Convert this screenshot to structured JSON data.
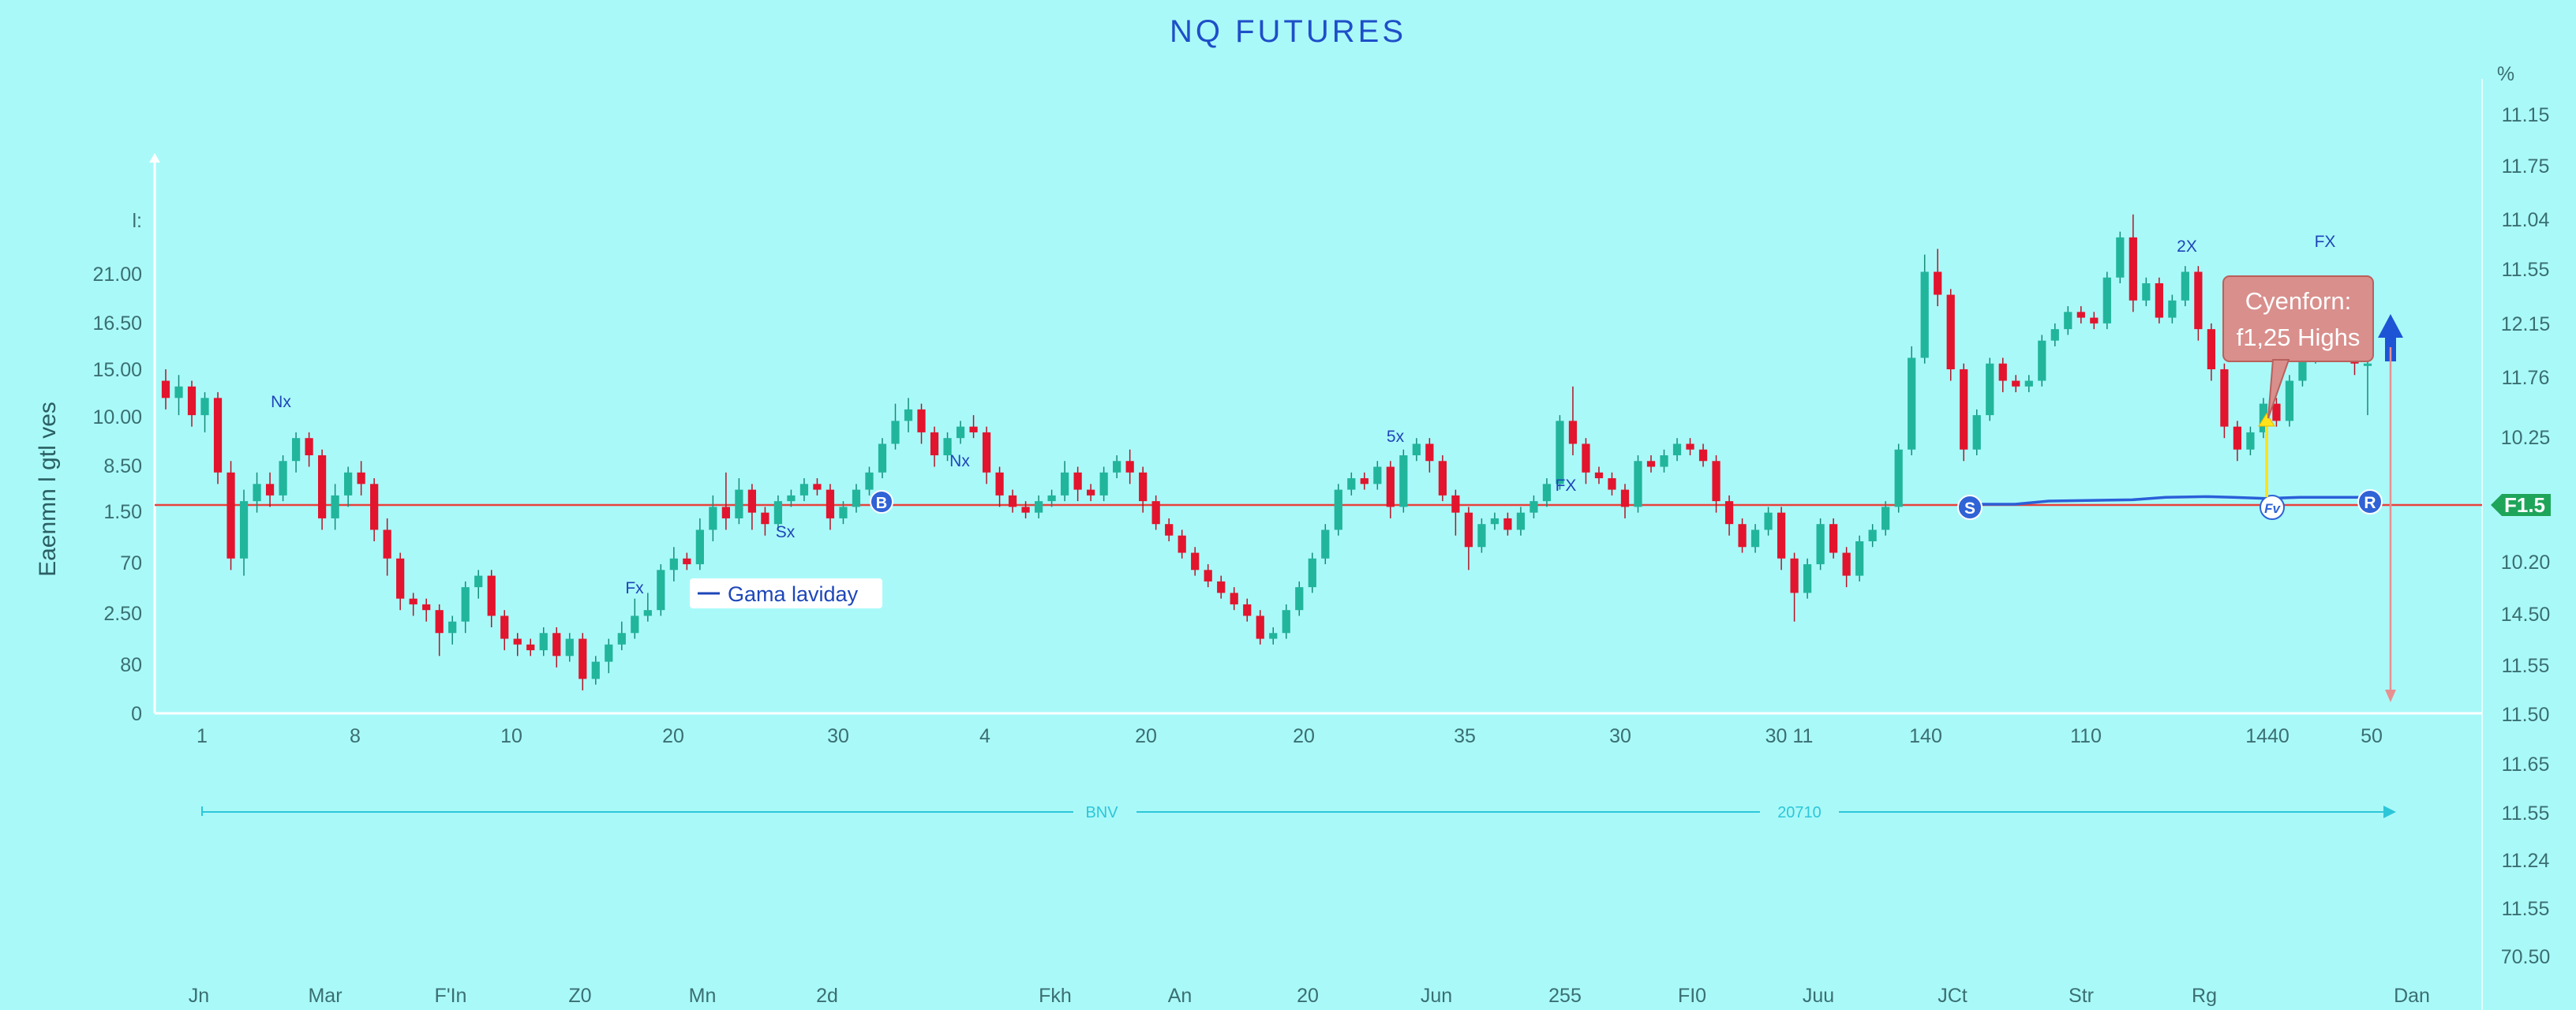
{
  "chart_data": {
    "type": "candlestick",
    "title": "NQ FUTURES",
    "ylabel": "Eaenmn l gtl ves",
    "right_axis_unit": "%",
    "left_ticks": [
      "0",
      "80",
      "2.50",
      "70",
      "1.50",
      "8.50",
      "10.00",
      "15.00",
      "16.50",
      "21.00",
      "l:"
    ],
    "right_ticks": [
      "11.15",
      "11.75",
      "11.04",
      "11.55",
      "12.15",
      "11.76",
      "10.25",
      "1F1.5",
      "10.20",
      "14.50",
      "11.55",
      "11.50",
      "11.65",
      "11.55",
      "11.24",
      "11.55",
      "70.50"
    ],
    "price_badge": "F1.5",
    "x_ticks": [
      "1",
      "8",
      "10",
      "20",
      "30",
      "4",
      "20",
      "20",
      "35",
      "30",
      "30 11",
      "140",
      "110",
      "1440",
      "50"
    ],
    "month_ticks": [
      "Jn",
      "Mar",
      "F'In",
      "Z0",
      "Mn",
      "2d",
      "Fkh",
      "An",
      "20",
      "Jun",
      "255",
      "FI0",
      "Juu",
      "JCt",
      "Str",
      "Rg",
      "Dan"
    ],
    "reference_line": 1.5,
    "annotations": [
      "Nx",
      "Sx",
      "Fx",
      "Nx",
      "5x",
      "FX",
      "2X",
      "FX"
    ],
    "markers": [
      "B",
      "S",
      "Fv",
      "R"
    ],
    "legend": "Gama laviday",
    "callout": [
      "Cyenforn:",
      "f1,25 Highs"
    ],
    "range_labels": [
      "BNV",
      "20710"
    ],
    "candles": [
      [
        10.6,
        10.3,
        10.8,
        10.1
      ],
      [
        10.3,
        10.5,
        10.7,
        10.0
      ],
      [
        10.5,
        10.0,
        10.6,
        9.8
      ],
      [
        10.0,
        10.3,
        10.4,
        9.7
      ],
      [
        10.3,
        9.0,
        10.4,
        8.8
      ],
      [
        9.0,
        7.5,
        9.2,
        7.3
      ],
      [
        7.5,
        8.5,
        8.7,
        7.2
      ],
      [
        8.5,
        8.8,
        9.0,
        8.3
      ],
      [
        8.8,
        8.6,
        9.0,
        8.4
      ],
      [
        8.6,
        9.2,
        9.3,
        8.5
      ],
      [
        9.2,
        9.6,
        9.7,
        9.0
      ],
      [
        9.6,
        9.3,
        9.7,
        9.1
      ],
      [
        9.3,
        8.2,
        9.4,
        8.0
      ],
      [
        8.2,
        8.6,
        8.8,
        8.0
      ],
      [
        8.6,
        9.0,
        9.1,
        8.4
      ],
      [
        9.0,
        8.8,
        9.2,
        8.6
      ],
      [
        8.8,
        8.0,
        8.9,
        7.8
      ],
      [
        8.0,
        7.5,
        8.2,
        7.2
      ],
      [
        7.5,
        6.8,
        7.6,
        6.6
      ],
      [
        6.8,
        6.7,
        6.9,
        6.5
      ],
      [
        6.7,
        6.6,
        6.8,
        6.4
      ],
      [
        6.6,
        6.2,
        6.7,
        5.8
      ],
      [
        6.2,
        6.4,
        6.5,
        6.0
      ],
      [
        6.4,
        7.0,
        7.1,
        6.2
      ],
      [
        7.0,
        7.2,
        7.3,
        6.8
      ],
      [
        7.2,
        6.5,
        7.3,
        6.3
      ],
      [
        6.5,
        6.1,
        6.6,
        5.9
      ],
      [
        6.1,
        6.0,
        6.2,
        5.8
      ],
      [
        6.0,
        5.9,
        6.1,
        5.8
      ],
      [
        5.9,
        6.2,
        6.3,
        5.8
      ],
      [
        6.2,
        5.8,
        6.3,
        5.6
      ],
      [
        5.8,
        6.1,
        6.2,
        5.7
      ],
      [
        6.1,
        5.4,
        6.2,
        5.2
      ],
      [
        5.4,
        5.7,
        5.8,
        5.3
      ],
      [
        5.7,
        6.0,
        6.1,
        5.5
      ],
      [
        6.0,
        6.2,
        6.4,
        5.9
      ],
      [
        6.2,
        6.5,
        6.8,
        6.1
      ],
      [
        6.5,
        6.6,
        6.9,
        6.4
      ],
      [
        6.6,
        7.3,
        7.4,
        6.5
      ],
      [
        7.3,
        7.5,
        7.7,
        7.1
      ],
      [
        7.5,
        7.4,
        7.6,
        7.3
      ],
      [
        7.4,
        8.0,
        8.2,
        7.3
      ],
      [
        8.0,
        8.4,
        8.6,
        7.8
      ],
      [
        8.4,
        8.2,
        9.0,
        8.0
      ],
      [
        8.2,
        8.7,
        8.9,
        8.1
      ],
      [
        8.7,
        8.3,
        8.8,
        8.0
      ],
      [
        8.3,
        8.1,
        8.4,
        7.9
      ],
      [
        8.1,
        8.5,
        8.6,
        8.0
      ],
      [
        8.5,
        8.6,
        8.7,
        8.4
      ],
      [
        8.6,
        8.8,
        8.9,
        8.5
      ],
      [
        8.8,
        8.7,
        8.9,
        8.6
      ],
      [
        8.7,
        8.2,
        8.8,
        8.0
      ],
      [
        8.2,
        8.4,
        8.5,
        8.1
      ],
      [
        8.4,
        8.7,
        8.8,
        8.3
      ],
      [
        8.7,
        9.0,
        9.1,
        8.6
      ],
      [
        9.0,
        9.5,
        9.6,
        8.9
      ],
      [
        9.5,
        9.9,
        10.2,
        9.4
      ],
      [
        9.9,
        10.1,
        10.3,
        9.7
      ],
      [
        10.1,
        9.7,
        10.2,
        9.5
      ],
      [
        9.7,
        9.3,
        9.8,
        9.1
      ],
      [
        9.3,
        9.6,
        9.7,
        9.2
      ],
      [
        9.6,
        9.8,
        9.9,
        9.5
      ],
      [
        9.8,
        9.7,
        10.0,
        9.6
      ],
      [
        9.7,
        9.0,
        9.8,
        8.8
      ],
      [
        9.0,
        8.6,
        9.1,
        8.4
      ],
      [
        8.6,
        8.4,
        8.7,
        8.3
      ],
      [
        8.4,
        8.3,
        8.5,
        8.2
      ],
      [
        8.3,
        8.5,
        8.6,
        8.2
      ],
      [
        8.5,
        8.6,
        8.7,
        8.4
      ],
      [
        8.6,
        9.0,
        9.2,
        8.5
      ],
      [
        9.0,
        8.7,
        9.1,
        8.5
      ],
      [
        8.7,
        8.6,
        8.8,
        8.5
      ],
      [
        8.6,
        9.0,
        9.1,
        8.5
      ],
      [
        9.0,
        9.2,
        9.3,
        8.9
      ],
      [
        9.2,
        9.0,
        9.4,
        8.8
      ],
      [
        9.0,
        8.5,
        9.1,
        8.3
      ],
      [
        8.5,
        8.1,
        8.6,
        8.0
      ],
      [
        8.1,
        7.9,
        8.2,
        7.8
      ],
      [
        7.9,
        7.6,
        8.0,
        7.5
      ],
      [
        7.6,
        7.3,
        7.7,
        7.2
      ],
      [
        7.3,
        7.1,
        7.4,
        7.0
      ],
      [
        7.1,
        6.9,
        7.2,
        6.8
      ],
      [
        6.9,
        6.7,
        7.0,
        6.6
      ],
      [
        6.7,
        6.5,
        6.8,
        6.4
      ],
      [
        6.5,
        6.1,
        6.6,
        6.0
      ],
      [
        6.1,
        6.2,
        6.3,
        6.0
      ],
      [
        6.2,
        6.6,
        6.7,
        6.1
      ],
      [
        6.6,
        7.0,
        7.1,
        6.5
      ],
      [
        7.0,
        7.5,
        7.6,
        6.9
      ],
      [
        7.5,
        8.0,
        8.1,
        7.4
      ],
      [
        8.0,
        8.7,
        8.8,
        7.9
      ],
      [
        8.7,
        8.9,
        9.0,
        8.6
      ],
      [
        8.9,
        8.8,
        9.0,
        8.7
      ],
      [
        8.8,
        9.1,
        9.2,
        8.7
      ],
      [
        9.1,
        8.4,
        9.2,
        8.2
      ],
      [
        8.4,
        9.3,
        9.4,
        8.3
      ],
      [
        9.3,
        9.5,
        9.6,
        9.2
      ],
      [
        9.5,
        9.2,
        9.6,
        9.0
      ],
      [
        9.2,
        8.6,
        9.3,
        8.5
      ],
      [
        8.6,
        8.3,
        8.7,
        7.9
      ],
      [
        8.3,
        7.7,
        8.4,
        7.3
      ],
      [
        7.7,
        8.1,
        8.2,
        7.6
      ],
      [
        8.1,
        8.2,
        8.3,
        8.0
      ],
      [
        8.2,
        8.0,
        8.3,
        7.9
      ],
      [
        8.0,
        8.3,
        8.4,
        7.9
      ],
      [
        8.3,
        8.5,
        8.6,
        8.2
      ],
      [
        8.5,
        8.8,
        8.9,
        8.4
      ],
      [
        8.8,
        9.9,
        10.0,
        8.7
      ],
      [
        9.9,
        9.5,
        10.5,
        9.3
      ],
      [
        9.5,
        9.0,
        9.6,
        8.8
      ],
      [
        9.0,
        8.9,
        9.1,
        8.8
      ],
      [
        8.9,
        8.7,
        9.0,
        8.6
      ],
      [
        8.7,
        8.4,
        8.8,
        8.2
      ],
      [
        8.4,
        9.2,
        9.3,
        8.3
      ],
      [
        9.2,
        9.1,
        9.3,
        9.0
      ],
      [
        9.1,
        9.3,
        9.4,
        9.0
      ],
      [
        9.3,
        9.5,
        9.6,
        9.2
      ],
      [
        9.5,
        9.4,
        9.6,
        9.3
      ],
      [
        9.4,
        9.2,
        9.5,
        9.1
      ],
      [
        9.2,
        8.5,
        9.3,
        8.3
      ],
      [
        8.5,
        8.1,
        8.6,
        7.9
      ],
      [
        8.1,
        7.7,
        8.2,
        7.6
      ],
      [
        7.7,
        8.0,
        8.1,
        7.6
      ],
      [
        8.0,
        8.3,
        8.4,
        7.9
      ],
      [
        8.3,
        7.5,
        8.4,
        7.3
      ],
      [
        7.5,
        6.9,
        7.6,
        6.4
      ],
      [
        6.9,
        7.4,
        7.5,
        6.8
      ],
      [
        7.4,
        8.1,
        8.2,
        7.3
      ],
      [
        8.1,
        7.6,
        8.2,
        7.5
      ],
      [
        7.6,
        7.2,
        7.7,
        7.0
      ],
      [
        7.2,
        7.8,
        7.9,
        7.1
      ],
      [
        7.8,
        8.0,
        8.1,
        7.7
      ],
      [
        8.0,
        8.4,
        8.5,
        7.9
      ],
      [
        8.4,
        9.4,
        9.5,
        8.3
      ],
      [
        9.4,
        11.0,
        11.2,
        9.3
      ],
      [
        11.0,
        12.5,
        12.8,
        10.9
      ],
      [
        12.5,
        12.1,
        12.9,
        11.9
      ],
      [
        12.1,
        10.8,
        12.2,
        10.6
      ],
      [
        10.8,
        9.4,
        10.9,
        9.2
      ],
      [
        9.4,
        10.0,
        10.1,
        9.3
      ],
      [
        10.0,
        10.9,
        11.0,
        9.9
      ],
      [
        10.9,
        10.6,
        11.0,
        10.4
      ],
      [
        10.6,
        10.5,
        10.7,
        10.4
      ],
      [
        10.5,
        10.6,
        10.7,
        10.4
      ],
      [
        10.6,
        11.3,
        11.4,
        10.5
      ],
      [
        11.3,
        11.5,
        11.6,
        11.2
      ],
      [
        11.5,
        11.8,
        11.9,
        11.4
      ],
      [
        11.8,
        11.7,
        11.9,
        11.6
      ],
      [
        11.7,
        11.6,
        11.8,
        11.5
      ],
      [
        11.6,
        12.4,
        12.5,
        11.5
      ],
      [
        12.4,
        13.1,
        13.2,
        12.3
      ],
      [
        13.1,
        12.0,
        13.5,
        11.8
      ],
      [
        12.0,
        12.3,
        12.4,
        11.9
      ],
      [
        12.3,
        11.7,
        12.4,
        11.6
      ],
      [
        11.7,
        12.0,
        12.1,
        11.6
      ],
      [
        12.0,
        12.5,
        12.6,
        11.9
      ],
      [
        12.5,
        11.5,
        12.6,
        11.3
      ],
      [
        11.5,
        10.8,
        11.6,
        10.6
      ],
      [
        10.8,
        9.8,
        10.9,
        9.6
      ],
      [
        9.8,
        9.4,
        9.9,
        9.2
      ],
      [
        9.4,
        9.7,
        9.8,
        9.3
      ],
      [
        9.7,
        10.2,
        10.3,
        9.6
      ],
      [
        10.2,
        9.9,
        10.3,
        9.8
      ],
      [
        9.9,
        10.6,
        10.7,
        9.8
      ],
      [
        10.6,
        11.0,
        11.1,
        10.5
      ],
      [
        11.0,
        11.3,
        11.4,
        10.9
      ],
      [
        11.3,
        11.5,
        11.6,
        11.2
      ],
      [
        11.5,
        11.4,
        11.6,
        11.3
      ],
      [
        11.4,
        10.9,
        11.5,
        10.7
      ],
      [
        10.9,
        10.9,
        11.0,
        10.0
      ]
    ],
    "overlay_line": [
      [
        1203,
        1.55
      ],
      [
        1230,
        1.55
      ],
      [
        1250,
        1.6
      ],
      [
        1300,
        1.62
      ],
      [
        1320,
        1.66
      ],
      [
        1345,
        1.67
      ],
      [
        1360,
        1.66
      ],
      [
        1380,
        1.64
      ],
      [
        1400,
        1.66
      ],
      [
        1442,
        1.66
      ]
    ]
  }
}
